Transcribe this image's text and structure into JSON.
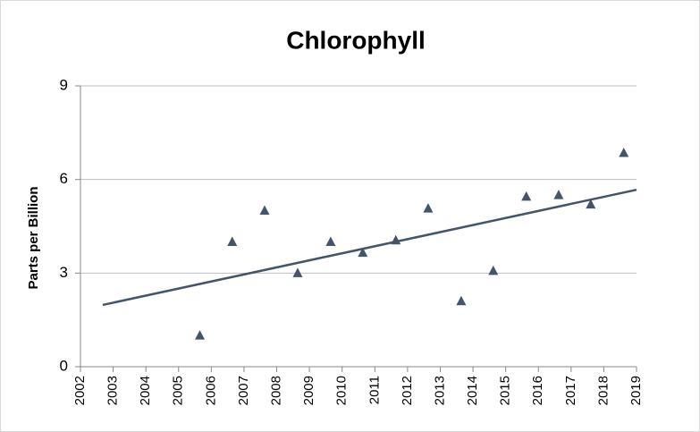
{
  "chart_data": {
    "type": "scatter",
    "title": "Chlorophyll",
    "y_label": "Parts per Billion",
    "x": [
      2005.65,
      2006.64,
      2007.63,
      2008.64,
      2009.65,
      2010.63,
      2011.64,
      2012.63,
      2013.64,
      2014.62,
      2015.63,
      2016.62,
      2017.6,
      2018.61
    ],
    "values": [
      1.0,
      4.0,
      5.0,
      3.0,
      4.0,
      3.65,
      4.05,
      5.07,
      2.1,
      3.07,
      5.45,
      5.5,
      5.2,
      6.85
    ],
    "color": "#44546a",
    "trendline": {
      "x": [
        2002.68,
        2019
      ],
      "y": [
        1.98,
        5.67
      ],
      "color": "#44546a"
    },
    "xlim": [
      2002,
      2019
    ],
    "xticks": [
      2002,
      2003,
      2004,
      2005,
      2006,
      2007,
      2008,
      2009,
      2010,
      2011,
      2012,
      2013,
      2014,
      2015,
      2016,
      2017,
      2018,
      2019
    ],
    "ylim": [
      0,
      9
    ],
    "yticks": [
      0,
      3,
      6,
      9
    ],
    "grid": true
  }
}
